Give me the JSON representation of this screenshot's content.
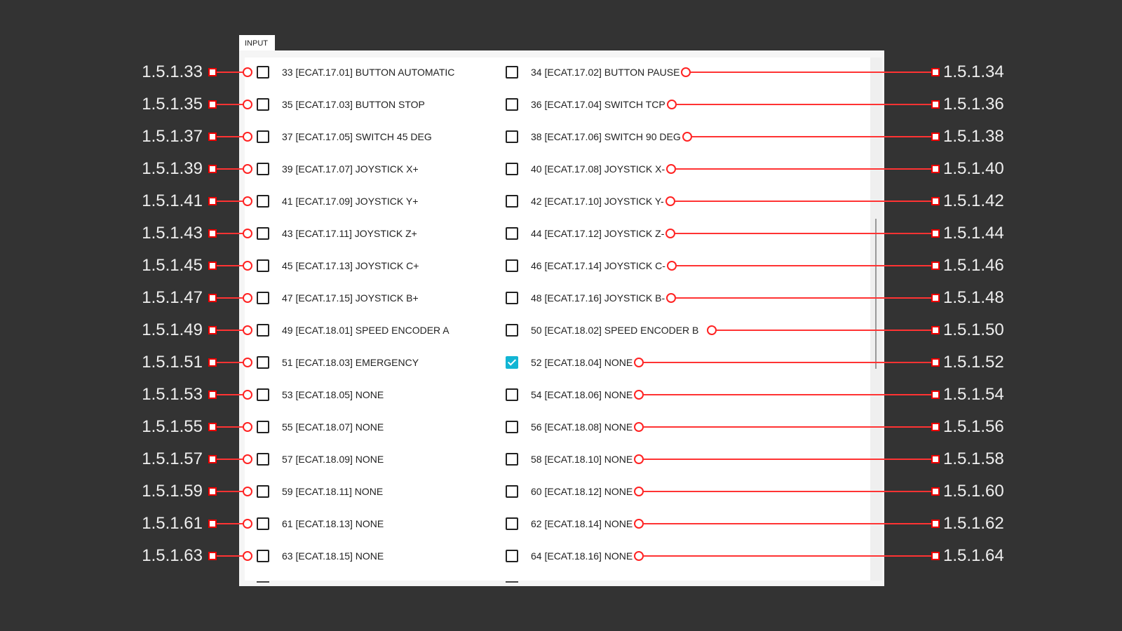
{
  "tab": {
    "label": "INPUT"
  },
  "colors": {
    "annotation": "#ff2222",
    "checked": "#12b5d4",
    "background": "#333333"
  },
  "rows": [
    {
      "left": {
        "ref": "1.5.1.33",
        "text": "33 [ECAT.17.01] BUTTON AUTOMATIC",
        "checked": false
      },
      "right": {
        "ref": "1.5.1.34",
        "text": "34 [ECAT.17.02] BUTTON PAUSE",
        "checked": false
      }
    },
    {
      "left": {
        "ref": "1.5.1.35",
        "text": "35 [ECAT.17.03] BUTTON STOP",
        "checked": false
      },
      "right": {
        "ref": "1.5.1.36",
        "text": "36 [ECAT.17.04] SWITCH TCP",
        "checked": false
      }
    },
    {
      "left": {
        "ref": "1.5.1.37",
        "text": "37 [ECAT.17.05] SWITCH 45 DEG",
        "checked": false
      },
      "right": {
        "ref": "1.5.1.38",
        "text": "38 [ECAT.17.06] SWITCH 90 DEG",
        "checked": false
      }
    },
    {
      "left": {
        "ref": "1.5.1.39",
        "text": "39 [ECAT.17.07] JOYSTICK X+",
        "checked": false
      },
      "right": {
        "ref": "1.5.1.40",
        "text": "40 [ECAT.17.08] JOYSTICK X-",
        "checked": false
      }
    },
    {
      "left": {
        "ref": "1.5.1.41",
        "text": "41 [ECAT.17.09] JOYSTICK Y+",
        "checked": false
      },
      "right": {
        "ref": "1.5.1.42",
        "text": "42 [ECAT.17.10] JOYSTICK Y-",
        "checked": false
      }
    },
    {
      "left": {
        "ref": "1.5.1.43",
        "text": "43 [ECAT.17.11] JOYSTICK Z+",
        "checked": false
      },
      "right": {
        "ref": "1.5.1.44",
        "text": "44 [ECAT.17.12] JOYSTICK Z-",
        "checked": false
      }
    },
    {
      "left": {
        "ref": "1.5.1.45",
        "text": "45 [ECAT.17.13] JOYSTICK C+",
        "checked": false
      },
      "right": {
        "ref": "1.5.1.46",
        "text": "46 [ECAT.17.14] JOYSTICK C-",
        "checked": false
      }
    },
    {
      "left": {
        "ref": "1.5.1.47",
        "text": "47 [ECAT.17.15] JOYSTICK B+",
        "checked": false
      },
      "right": {
        "ref": "1.5.1.48",
        "text": "48 [ECAT.17.16] JOYSTICK B-",
        "checked": false
      }
    },
    {
      "left": {
        "ref": "1.5.1.49",
        "text": "49 [ECAT.18.01] SPEED ENCODER A",
        "checked": false
      },
      "right": {
        "ref": "1.5.1.50",
        "text": "50 [ECAT.18.02] SPEED ENCODER B",
        "checked": false
      }
    },
    {
      "left": {
        "ref": "1.5.1.51",
        "text": "51 [ECAT.18.03] EMERGENCY",
        "checked": false
      },
      "right": {
        "ref": "1.5.1.52",
        "text": "52 [ECAT.18.04] NONE",
        "checked": true
      }
    },
    {
      "left": {
        "ref": "1.5.1.53",
        "text": "53 [ECAT.18.05] NONE",
        "checked": false
      },
      "right": {
        "ref": "1.5.1.54",
        "text": "54 [ECAT.18.06] NONE",
        "checked": false
      }
    },
    {
      "left": {
        "ref": "1.5.1.55",
        "text": "55 [ECAT.18.07] NONE",
        "checked": false
      },
      "right": {
        "ref": "1.5.1.56",
        "text": "56 [ECAT.18.08] NONE",
        "checked": false
      }
    },
    {
      "left": {
        "ref": "1.5.1.57",
        "text": "57 [ECAT.18.09] NONE",
        "checked": false
      },
      "right": {
        "ref": "1.5.1.58",
        "text": "58 [ECAT.18.10] NONE",
        "checked": false
      }
    },
    {
      "left": {
        "ref": "1.5.1.59",
        "text": "59 [ECAT.18.11] NONE",
        "checked": false
      },
      "right": {
        "ref": "1.5.1.60",
        "text": "60 [ECAT.18.12] NONE",
        "checked": false
      }
    },
    {
      "left": {
        "ref": "1.5.1.61",
        "text": "61 [ECAT.18.13] NONE",
        "checked": false
      },
      "right": {
        "ref": "1.5.1.62",
        "text": "62 [ECAT.18.14] NONE",
        "checked": false
      }
    },
    {
      "left": {
        "ref": "1.5.1.63",
        "text": "63 [ECAT.18.15] NONE",
        "checked": false
      },
      "right": {
        "ref": "1.5.1.64",
        "text": "64 [ECAT.18.16] NONE",
        "checked": false
      }
    }
  ]
}
